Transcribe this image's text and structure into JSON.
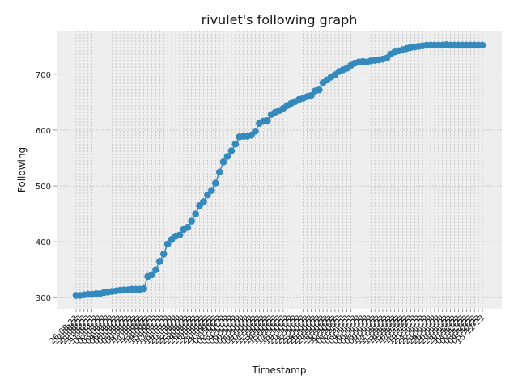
{
  "chart_data": {
    "type": "line",
    "title": "rivulet's following graph",
    "xlabel": "Timestamp",
    "ylabel": "Following",
    "ylim": [
      280,
      778
    ],
    "yticks": [
      300,
      400,
      500,
      600,
      700
    ],
    "grid": true,
    "x": [
      "26-08-22",
      "27-08-22",
      "28-08-22",
      "29-08-22",
      "30-08-22",
      "31-08-22",
      "01-09-22",
      "02-09-22",
      "03-09-22",
      "04-09-22",
      "05-09-22",
      "06-09-22",
      "07-09-22",
      "08-09-22",
      "09-09-22",
      "10-09-22",
      "11-09-22",
      "12-09-22",
      "13-09-22",
      "14-09-22",
      "15-09-22",
      "16-09-22",
      "17-09-22",
      "18-09-22",
      "19-09-22",
      "20-09-22",
      "21-09-22",
      "22-09-22",
      "23-09-22",
      "24-09-22",
      "25-09-22",
      "26-09-22",
      "27-09-22",
      "28-09-22",
      "29-09-22",
      "30-09-22",
      "01-10-22",
      "02-10-22",
      "03-10-22",
      "04-10-22",
      "05-10-22",
      "06-10-22",
      "07-10-22",
      "08-10-22",
      "09-10-22",
      "10-10-22",
      "11-10-22",
      "12-10-22",
      "13-10-22",
      "14-10-22",
      "15-10-22",
      "16-10-22",
      "17-10-22",
      "18-10-22",
      "19-10-22",
      "20-10-22",
      "21-10-22",
      "22-10-22",
      "23-10-22",
      "24-10-22",
      "25-10-22",
      "26-10-22",
      "27-10-22",
      "28-10-22",
      "29-10-22",
      "30-10-22",
      "31-10-22",
      "01-11-22",
      "02-11-22",
      "03-11-22",
      "04-11-22",
      "05-11-22",
      "06-11-22",
      "07-11-22",
      "08-11-22",
      "09-11-22",
      "10-11-22",
      "11-11-22",
      "12-11-22",
      "13-11-22",
      "14-11-22",
      "15-11-22",
      "16-11-22",
      "17-11-22",
      "18-11-22",
      "19-11-22",
      "20-11-22",
      "21-11-22",
      "22-11-22",
      "23-11-22",
      "24-11-22",
      "25-11-22",
      "26-11-22",
      "27-11-22",
      "28-11-22",
      "29-11-22",
      "30-11-22",
      "01-12-22",
      "02-12-22",
      "03-12-22",
      "04-12-22",
      "05-12-22",
      "15-12-23"
    ],
    "series": [
      {
        "values": [
          304,
          304,
          305,
          306,
          306,
          307,
          307,
          309,
          310,
          311,
          312,
          313,
          314,
          314,
          315,
          315,
          315,
          316,
          338,
          341,
          350,
          365,
          378,
          396,
          404,
          410,
          412,
          422,
          426,
          437,
          450,
          465,
          472,
          484,
          492,
          505,
          525,
          543,
          553,
          563,
          575,
          588,
          589,
          589,
          591,
          598,
          612,
          616,
          617,
          628,
          632,
          635,
          639,
          644,
          648,
          651,
          655,
          657,
          660,
          662,
          670,
          672,
          685,
          690,
          695,
          699,
          705,
          708,
          711,
          716,
          720,
          722,
          723,
          722,
          724,
          725,
          726,
          727,
          729,
          736,
          740,
          742,
          744,
          746,
          748,
          749,
          750,
          751,
          752,
          752,
          752,
          752,
          752,
          753,
          752,
          752,
          752,
          752,
          752,
          752,
          752,
          752,
          752
        ]
      }
    ],
    "colors": {
      "line": "#348abd",
      "plot_background": "#eeeeee",
      "grid": "#b0b0b0"
    }
  }
}
